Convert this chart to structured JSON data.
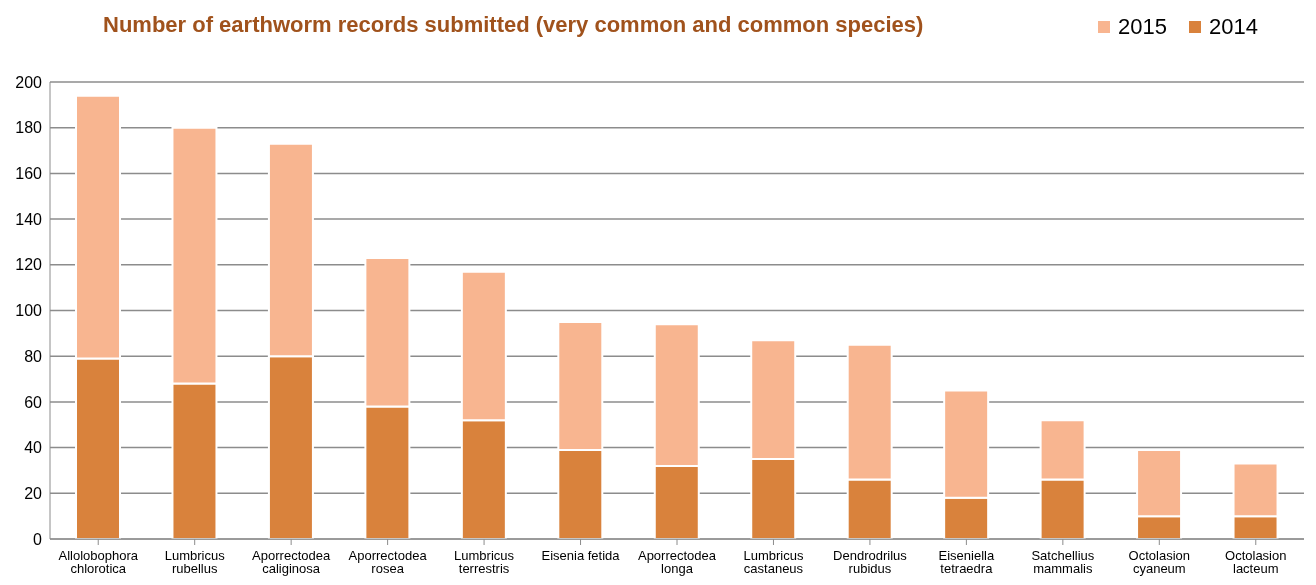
{
  "chart_data": {
    "type": "bar",
    "title": "Number of earthworm records submitted (very common and common species)",
    "categories": [
      "Allolobophora chlorotica",
      "Lumbricus rubellus",
      "Aporrectodea caliginosa",
      "Aporrectodea rosea",
      "Lumbricus terrestris",
      "Eisenia fetida",
      "Aporrectodea longa",
      "Lumbricus castaneus",
      "Dendrodrilus rubidus",
      "Eiseniella tetraedra",
      "Satchellius mammalis",
      "Octolasion cyaneum",
      "Octolasion lacteum"
    ],
    "series": [
      {
        "name": "2014",
        "color": "#d9823c",
        "values": [
          79,
          68,
          80,
          58,
          52,
          39,
          32,
          35,
          26,
          18,
          26,
          10,
          10
        ]
      },
      {
        "name": "2015",
        "color": "#f8b590",
        "values": [
          115,
          112,
          93,
          65,
          65,
          56,
          62,
          52,
          59,
          47,
          26,
          29,
          23
        ]
      }
    ],
    "stacked": true,
    "ylim": [
      0,
      200
    ],
    "yticks": [
      0,
      20,
      40,
      60,
      80,
      100,
      120,
      140,
      160,
      180,
      200
    ],
    "grid": "y",
    "legend": "top right"
  }
}
